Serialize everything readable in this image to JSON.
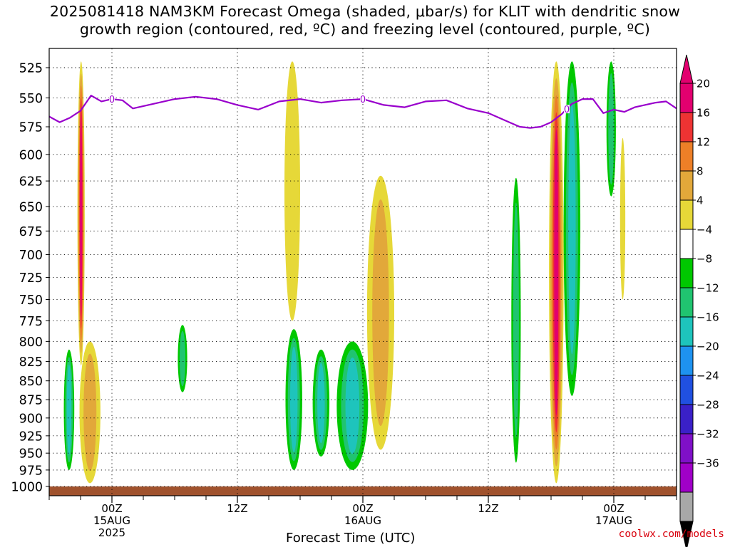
{
  "title_line1": "2025081418 NAM3KM Forecast Omega (shaded, μbar/s) for KLIT with dendritic snow",
  "title_line2": "growth region (contoured, red, ºC) and freezing level (contoured, purple, ºC)",
  "credit": "coolwx.com/models",
  "chart_data": {
    "type": "heatmap",
    "xlabel": "Forecast Time (UTC)",
    "ylabel": "",
    "x_range_hours": [
      0,
      60
    ],
    "y_axis": {
      "levels_hpa": [
        525,
        550,
        575,
        600,
        625,
        650,
        675,
        700,
        725,
        750,
        775,
        800,
        825,
        850,
        875,
        900,
        925,
        950,
        975,
        1000
      ],
      "inverted": true,
      "scale": "log-pressure"
    },
    "x_ticks": [
      {
        "hour": 6,
        "label": "00Z",
        "sublabel": "15AUG",
        "sublabel2": "2025"
      },
      {
        "hour": 18,
        "label": "12Z",
        "sublabel": "",
        "sublabel2": ""
      },
      {
        "hour": 30,
        "label": "00Z",
        "sublabel": "16AUG",
        "sublabel2": ""
      },
      {
        "hour": 42,
        "label": "12Z",
        "sublabel": "",
        "sublabel2": ""
      },
      {
        "hour": 54,
        "label": "00Z",
        "sublabel": "17AUG",
        "sublabel2": ""
      }
    ],
    "grid": "dotted",
    "colorbar": {
      "labels": [
        "20",
        "16",
        "12",
        "8",
        "4",
        "−4",
        "−8",
        "−12",
        "−16",
        "−20",
        "−24",
        "−28",
        "−32",
        "−36"
      ],
      "colors": [
        "#e2006f",
        "#ee3333",
        "#ed7f27",
        "#e2a83a",
        "#e6d838",
        "#ffffff",
        "#00c800",
        "#20c470",
        "#1ec4bc",
        "#1e92f0",
        "#2050e0",
        "#3a20c8",
        "#7f10c8",
        "#a000c8",
        "#a8a8a8"
      ],
      "top_arrow_color": "#e2006f",
      "bottom_arrow_color": "#000000"
    },
    "freezing_level_label": "0",
    "freezing_level_color": "#9900cc",
    "ground_color": "#a0522d",
    "freezing_level": {
      "hours": [
        0,
        1,
        2,
        3,
        4,
        5,
        6,
        7,
        8,
        10,
        12,
        14,
        16,
        18,
        20,
        22,
        24,
        26,
        28,
        30,
        32,
        34,
        36,
        38,
        40,
        42,
        44,
        45,
        46,
        47,
        48,
        49,
        50,
        51,
        52,
        53,
        54,
        55,
        56,
        58,
        59,
        60
      ],
      "pressure_hpa": [
        566,
        571,
        567,
        561,
        548,
        553,
        551,
        552,
        559,
        555,
        551,
        549,
        551,
        556,
        560,
        553,
        551,
        554,
        552,
        551,
        556,
        558,
        553,
        552,
        559,
        563,
        571,
        575,
        576,
        575,
        571,
        564,
        555,
        551,
        551,
        563,
        560,
        562,
        558,
        554,
        553,
        559
      ]
    },
    "features": [
      {
        "type": "updraft_max",
        "value_max": 20,
        "hours": [
          2.7,
          3.4
        ],
        "pressure_hpa": [
          520,
          830
        ]
      },
      {
        "type": "updraft",
        "value_max": 10,
        "hours": [
          2.9,
          4.9
        ],
        "pressure_hpa": [
          800,
          995
        ]
      },
      {
        "type": "downdraft",
        "value_min": -12,
        "hours": [
          1.4,
          2.4
        ],
        "pressure_hpa": [
          810,
          975
        ]
      },
      {
        "type": "downdraft",
        "value_min": -8,
        "hours": [
          12.3,
          13.2
        ],
        "pressure_hpa": [
          780,
          865
        ]
      },
      {
        "type": "updraft",
        "value_max": 6,
        "hours": [
          22.5,
          24
        ],
        "pressure_hpa": [
          520,
          775
        ]
      },
      {
        "type": "downdraft",
        "value_min": -14,
        "hours": [
          22.6,
          24.2
        ],
        "pressure_hpa": [
          785,
          975
        ]
      },
      {
        "type": "downdraft",
        "value_min": -12,
        "hours": [
          25.2,
          26.8
        ],
        "pressure_hpa": [
          810,
          955
        ]
      },
      {
        "type": "downdraft",
        "value_min": -14,
        "hours": [
          27.5,
          30.5
        ],
        "pressure_hpa": [
          800,
          975
        ]
      },
      {
        "type": "updraft",
        "value_max": 10,
        "hours": [
          30.4,
          33
        ],
        "pressure_hpa": [
          620,
          945
        ]
      },
      {
        "type": "downdraft",
        "value_min": -10,
        "hours": [
          44.2,
          45.1
        ],
        "pressure_hpa": [
          622,
          964
        ]
      },
      {
        "type": "updraft_max",
        "value_max": 20,
        "hours": [
          47.8,
          49.2
        ],
        "pressure_hpa": [
          520,
          995
        ]
      },
      {
        "type": "downdraft",
        "value_min": -14,
        "hours": [
          49.2,
          50.8
        ],
        "pressure_hpa": [
          520,
          870
        ]
      },
      {
        "type": "downdraft",
        "value_min": -8,
        "hours": [
          53.3,
          54.2
        ],
        "pressure_hpa": [
          520,
          640
        ]
      },
      {
        "type": "updraft",
        "value_max": 6,
        "hours": [
          54.6,
          55.1
        ],
        "pressure_hpa": [
          585,
          750
        ]
      }
    ]
  }
}
